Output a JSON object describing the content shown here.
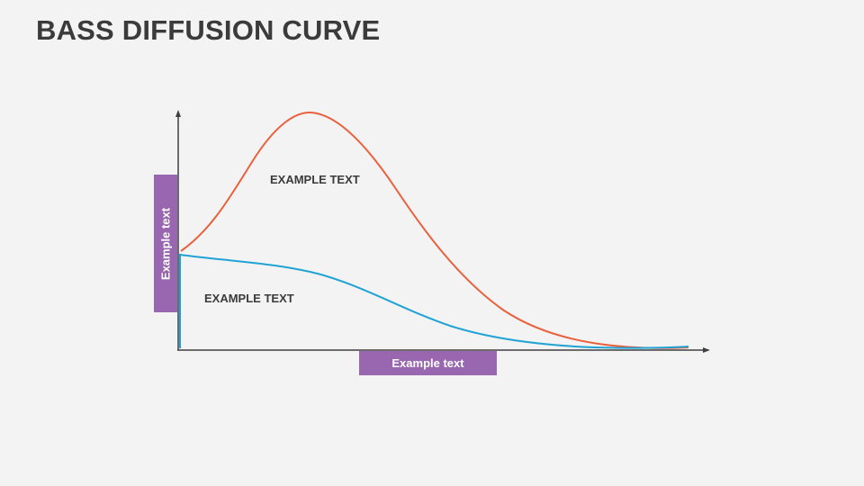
{
  "slide": {
    "title": "BASS DIFFUSION CURVE"
  },
  "diagram": {
    "y_axis_label": "Example text",
    "x_axis_label": "Example text",
    "top_curve_label": "EXAMPLE TEXT",
    "bottom_curve_label": "EXAMPLE TEXT"
  },
  "colors": {
    "background": "#f3f3f3",
    "title": "#3b3b3b",
    "axis": "#404040",
    "label_box": "#9966b0",
    "adoption_curve": "#e9603c",
    "innovator_curve": "#1fa3d4"
  }
}
